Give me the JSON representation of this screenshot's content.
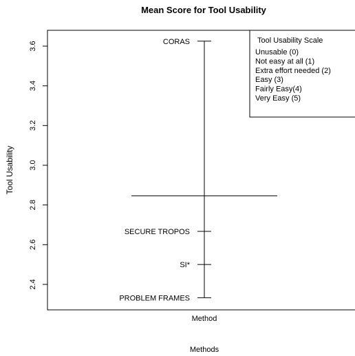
{
  "chart_data": {
    "type": "other",
    "title": "Mean Score for Tool Usability",
    "xlabel": "Methods",
    "ylabel": "Tool Usability",
    "x_axis_label": "Method",
    "ylim": [
      2.33,
      3.64
    ],
    "y_ticks": [
      {
        "value": 2.4,
        "label": "2.4"
      },
      {
        "value": 2.6,
        "label": "2.6"
      },
      {
        "value": 2.8,
        "label": "2.8"
      },
      {
        "value": 3.0,
        "label": "3.0"
      },
      {
        "value": 3.2,
        "label": "3.2"
      },
      {
        "value": 3.4,
        "label": "3.4"
      },
      {
        "value": 3.6,
        "label": "3.6"
      }
    ],
    "range": [
      2.333,
      3.625
    ],
    "grand_mean": 2.846,
    "methods": [
      {
        "label": "CORAS",
        "value": 3.625
      },
      {
        "label": "SECURE TROPOS",
        "value": 2.667
      },
      {
        "label": "SI*",
        "value": 2.5
      },
      {
        "label": "PROBLEM FRAMES",
        "value": 2.333
      }
    ],
    "legend": {
      "title": "Tool Usability Scale",
      "entries": [
        "Unusable (0)",
        "Not easy at all (1)",
        "Extra effort needed (2)",
        "Easy (3)",
        "Fairly Easy(4)",
        "Very Easy (5)"
      ]
    }
  }
}
